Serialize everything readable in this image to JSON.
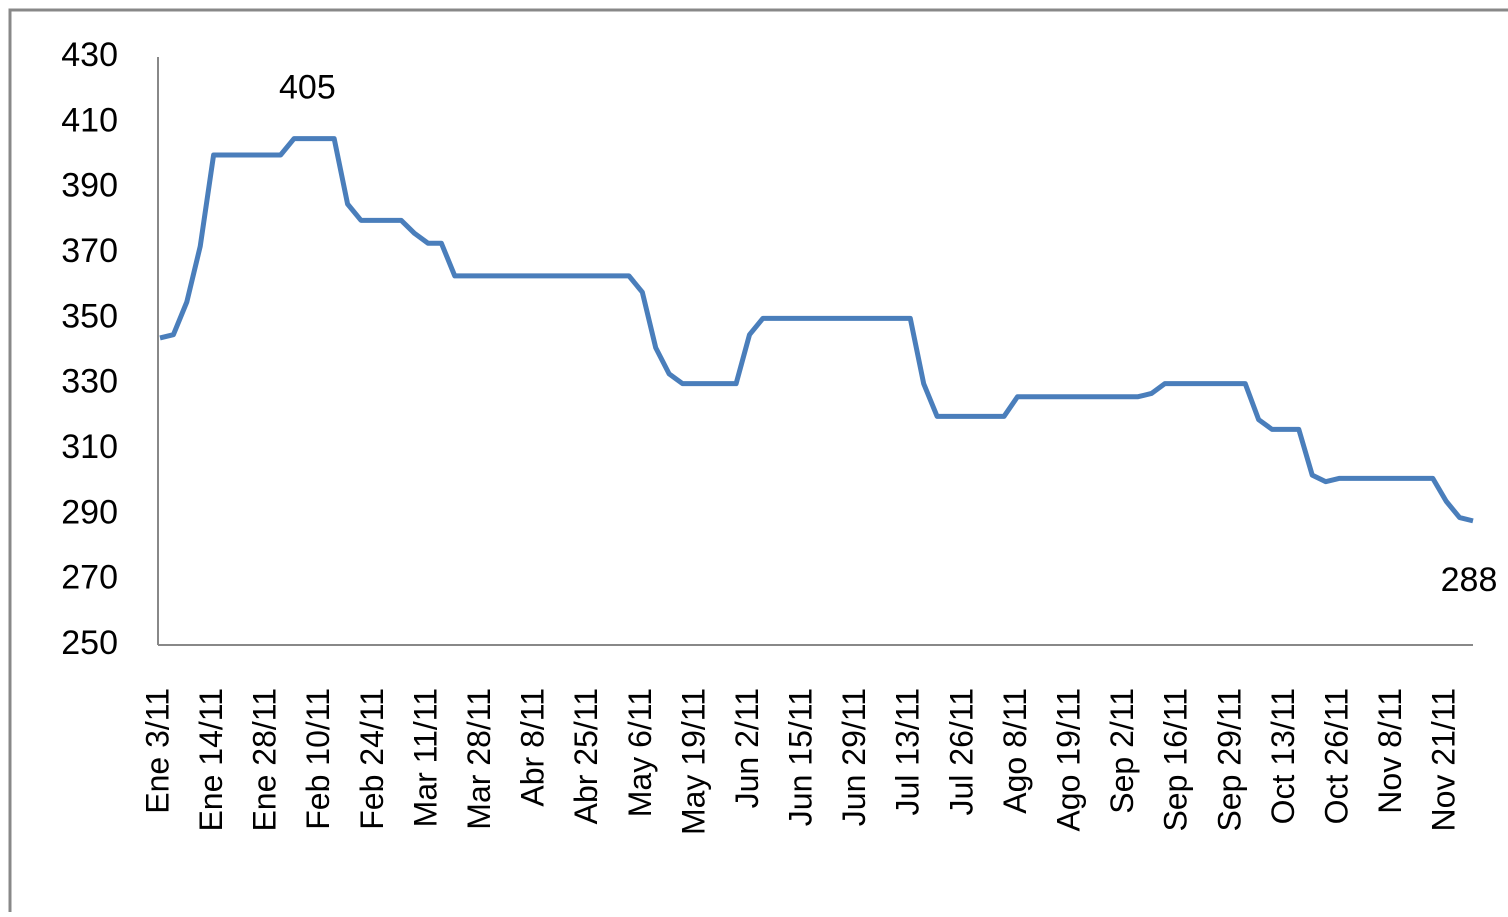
{
  "chart_data": {
    "type": "line",
    "categories": [
      "Ene 3/11",
      null,
      null,
      null,
      "Ene 14/11",
      null,
      null,
      null,
      "Ene 28/11",
      null,
      null,
      null,
      "Feb 10/11",
      null,
      null,
      null,
      "Feb 24/11",
      null,
      null,
      null,
      "Mar 11/11",
      null,
      null,
      null,
      "Mar 28/11",
      null,
      null,
      null,
      "Abr 8/11",
      null,
      null,
      null,
      "Abr 25/11",
      null,
      null,
      null,
      "May 6/11",
      null,
      null,
      null,
      "May 19/11",
      null,
      null,
      null,
      "Jun 2/11",
      null,
      null,
      null,
      "Jun 15/11",
      null,
      null,
      null,
      "Jun 29/11",
      null,
      null,
      null,
      "Jul 13/11",
      null,
      null,
      null,
      "Jul 26/11",
      null,
      null,
      null,
      "Ago 8/11",
      null,
      null,
      null,
      "Ago 19/11",
      null,
      null,
      null,
      "Sep 2/11",
      null,
      null,
      null,
      "Sep 16/11",
      null,
      null,
      null,
      "Sep 29/11",
      null,
      null,
      null,
      "Oct 13/11",
      null,
      null,
      null,
      "Oct 26/11",
      null,
      null,
      null,
      "Nov 8/11",
      null,
      null,
      null,
      "Nov 21/11",
      null,
      null
    ],
    "values": [
      344,
      345,
      355,
      372,
      400,
      400,
      400,
      400,
      400,
      400,
      405,
      405,
      405,
      405,
      385,
      380,
      380,
      380,
      380,
      376,
      373,
      373,
      363,
      363,
      363,
      363,
      363,
      363,
      363,
      363,
      363,
      363,
      363,
      363,
      363,
      363,
      358,
      341,
      333,
      330,
      330,
      330,
      330,
      330,
      345,
      350,
      350,
      350,
      350,
      350,
      350,
      350,
      350,
      350,
      350,
      350,
      350,
      330,
      320,
      320,
      320,
      320,
      320,
      320,
      326,
      326,
      326,
      326,
      326,
      326,
      326,
      326,
      326,
      326,
      327,
      330,
      330,
      330,
      330,
      330,
      330,
      330,
      319,
      316,
      316,
      316,
      302,
      300,
      301,
      301,
      301,
      301,
      301,
      301,
      301,
      301,
      294,
      289,
      288
    ],
    "value_labels": [
      null,
      null,
      null,
      null,
      null,
      null,
      null,
      null,
      null,
      null,
      null,
      "405",
      null,
      null,
      null,
      null,
      null,
      null,
      null,
      null,
      null,
      null,
      null,
      null,
      null,
      null,
      null,
      null,
      null,
      null,
      null,
      null,
      null,
      null,
      null,
      null,
      null,
      null,
      null,
      null,
      null,
      null,
      null,
      null,
      null,
      null,
      null,
      null,
      null,
      null,
      null,
      null,
      null,
      null,
      null,
      null,
      null,
      null,
      null,
      null,
      null,
      null,
      null,
      null,
      null,
      null,
      null,
      null,
      null,
      null,
      null,
      null,
      null,
      null,
      null,
      null,
      null,
      null,
      null,
      null,
      null,
      null,
      null,
      null,
      null,
      null,
      null,
      null,
      null,
      null,
      null,
      null,
      null,
      null,
      null,
      null,
      null,
      null,
      "288"
    ],
    "color": "#4a7ebb",
    "ylim": [
      250,
      430
    ],
    "yticks": [
      250,
      270,
      290,
      310,
      330,
      350,
      370,
      390,
      410,
      430
    ],
    "grid": false
  }
}
